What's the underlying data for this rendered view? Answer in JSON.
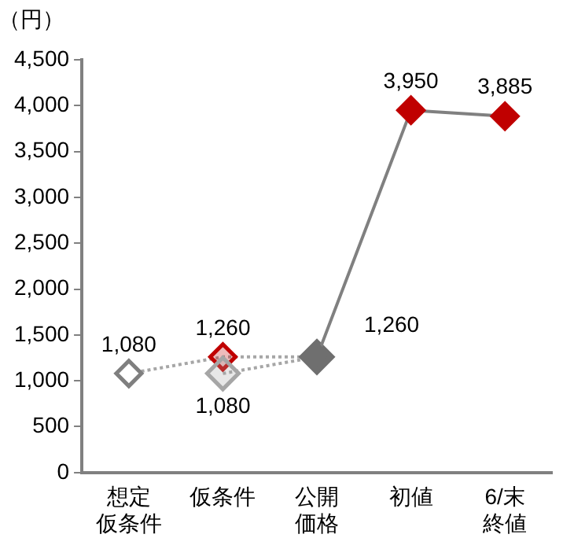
{
  "chart_data": {
    "type": "line",
    "ylabel": "（円）",
    "categories": [
      "想定仮条件",
      "仮条件",
      "公開価格",
      "初値",
      "6/末終値"
    ],
    "series": [
      {
        "color": "#a6a6a6",
        "line_style": "dotted",
        "colors": [
          "#7f7f7f",
          "#c00000",
          "#6f6f6f",
          null,
          null
        ],
        "values": [
          1080,
          1260,
          1260,
          null,
          null
        ],
        "value_labels": [
          "1,080",
          "1,260",
          null,
          null,
          null
        ]
      },
      {
        "color": "#a6a6a6",
        "line_style": "dotted",
        "colors": [
          null,
          "#a6a6a6",
          "#6f6f6f",
          null,
          null
        ],
        "values": [
          null,
          1080,
          1260,
          null,
          null
        ],
        "value_labels": [
          null,
          "1,080",
          null,
          null,
          null
        ]
      },
      {
        "color": "#808080",
        "line_style": "solid",
        "colors": [
          null,
          null,
          "#6f6f6f",
          "#c00000",
          "#c00000"
        ],
        "values": [
          null,
          null,
          1260,
          3950,
          3885
        ],
        "value_labels": [
          null,
          null,
          "1,260",
          "3,950",
          "3,885"
        ]
      }
    ],
    "ylim": [
      0,
      4500
    ],
    "yticks": [
      0,
      500,
      {
        "value": 1000,
        "label": "1,000"
      },
      {
        "value": 1500,
        "label": "1,500"
      },
      {
        "value": 2000,
        "label": "2,000"
      },
      {
        "value": 2500,
        "label": "2,500"
      },
      {
        "value": 3000,
        "label": "3,000"
      },
      {
        "value": 3500,
        "label": "3,500"
      },
      {
        "value": 4000,
        "label": "4,000"
      },
      {
        "value": 4500,
        "label": "4,500"
      }
    ],
    "grid": false,
    "legend": false,
    "marker": "diamond"
  }
}
